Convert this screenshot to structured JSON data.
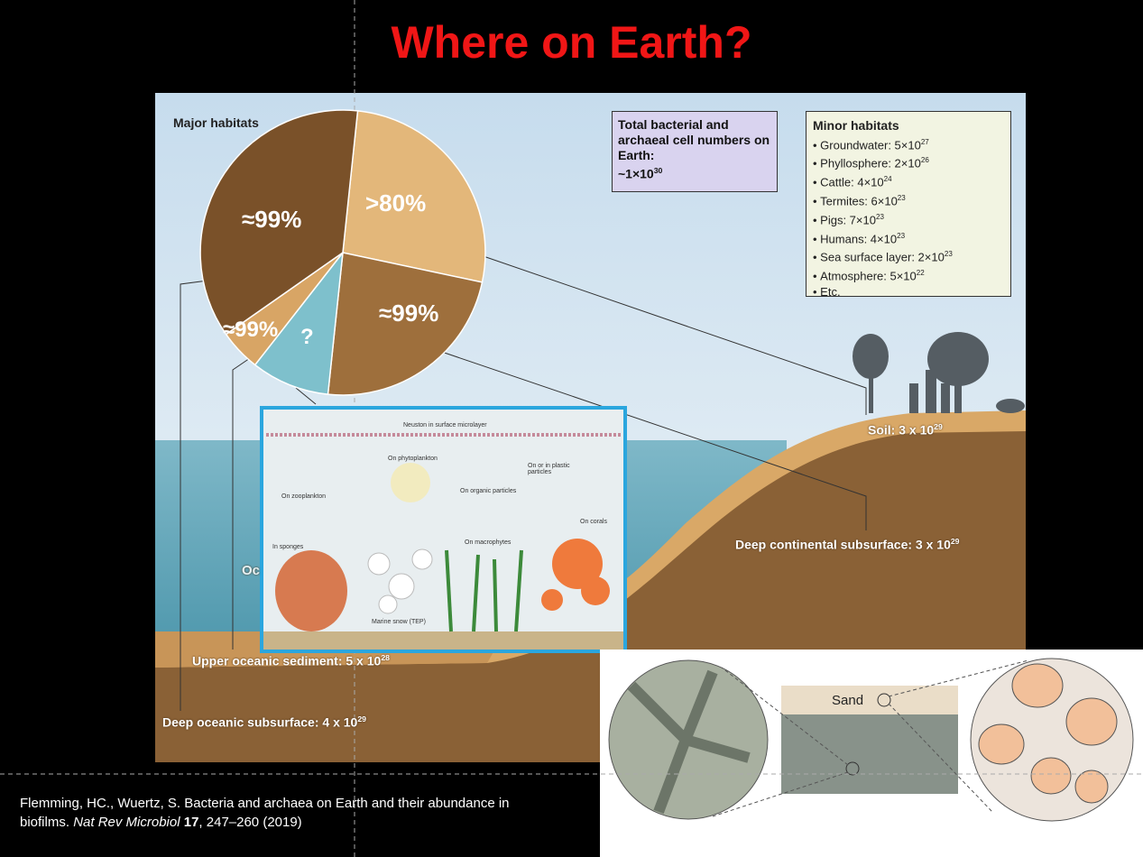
{
  "title": "Where on Earth?",
  "major_habitats": {
    "label": "Major habitats",
    "slices": [
      ">80%",
      "≈99%",
      "?",
      "≈99%",
      "≈99%"
    ]
  },
  "total": {
    "text": "Total bacterial and archaeal cell numbers on Earth:",
    "value": "~1×10",
    "exponent": "30"
  },
  "minor_habitats": {
    "title": "Minor habitats",
    "items": [
      {
        "text": "Groundwater: 5×10",
        "exponent": "27"
      },
      {
        "text": "Phyllosphere: 2×10",
        "exponent": "26"
      },
      {
        "text": "Cattle: 4×10",
        "exponent": "24"
      },
      {
        "text": "Termites: 6×10",
        "exponent": "23"
      },
      {
        "text": "Pigs: 7×10",
        "exponent": "23"
      },
      {
        "text": "Humans: 4×10",
        "exponent": "23"
      },
      {
        "text": "Sea surface layer: 2×10",
        "exponent": "23"
      },
      {
        "text": "Atmosphere: 5×10",
        "exponent": "22"
      },
      {
        "text": "Etc."
      }
    ]
  },
  "habitats": [
    {
      "text": "Soil: 3 x 10",
      "exponent": "29"
    },
    {
      "text": "Deep continental subsurface: 3 x 10",
      "exponent": "29"
    },
    {
      "text": "Upper oceanic sediment: 5 x 10",
      "exponent": "28"
    },
    {
      "text": "Deep oceanic subsurface: 4 x 10",
      "exponent": "29"
    },
    {
      "text": "Oc"
    }
  ],
  "inset_labels": [
    "Neuston in surface microlayer",
    "On zooplankton",
    "On phytoplankton",
    "On organic particles",
    "On or in plastic particles",
    "In sponges",
    "Marine snow (TEP)",
    "On macrophytes",
    "On corals"
  ],
  "sand_label": "Sand",
  "citation": {
    "authors": "Flemming, HC., Wuertz, S. Bacteria and archaea on Earth and their abundance in biofilms.",
    "journal": "Nat Rev Microbiol",
    "volume": "17",
    "pages": ", 247–260 (2019)"
  }
}
